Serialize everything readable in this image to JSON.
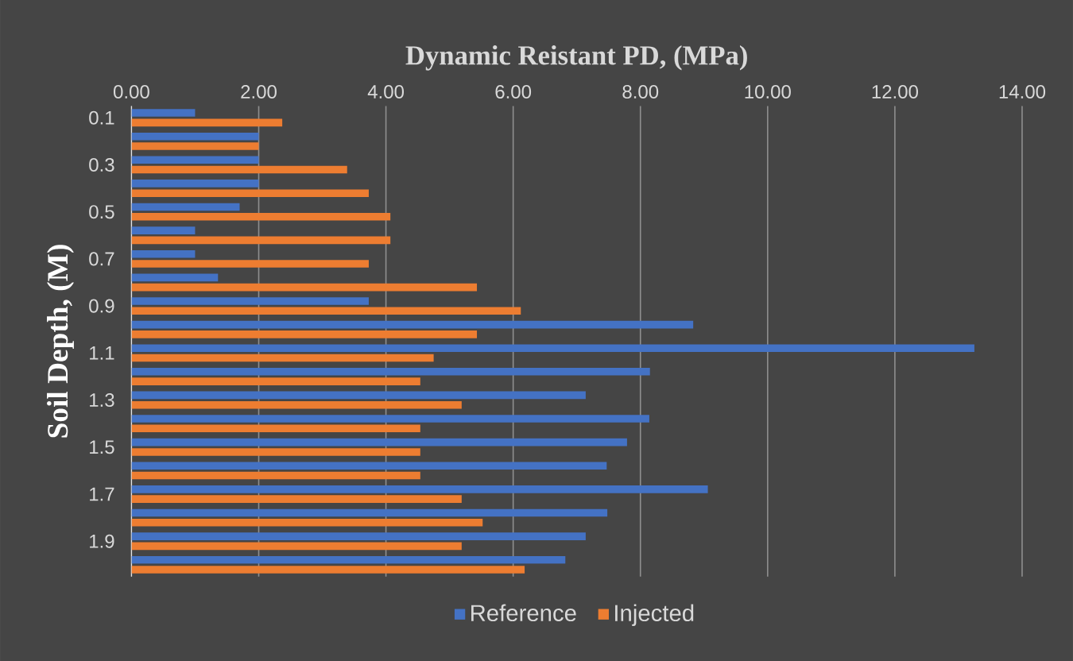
{
  "chart_data": {
    "type": "bar",
    "orientation": "horizontal",
    "xlabel": "Dynamic Reistant PD, (MPa)",
    "ylabel": "Soil Depth, (M)",
    "categories": [
      "0.1",
      null,
      "0.3",
      null,
      "0.5",
      null,
      "0.7",
      null,
      "0.9",
      null,
      "1.1",
      null,
      "1.3",
      null,
      "1.5",
      null,
      "1.7",
      null,
      "1.9",
      null
    ],
    "series": [
      {
        "name": "Reference",
        "color": "#4472c4",
        "values": [
          1.0,
          2.0,
          2.0,
          2.0,
          1.7,
          1.0,
          1.0,
          1.36,
          3.73,
          8.83,
          13.25,
          8.15,
          7.14,
          8.14,
          7.79,
          7.47,
          9.06,
          7.48,
          7.14,
          6.82
        ]
      },
      {
        "name": "Injected",
        "color": "#ed7d31",
        "values": [
          2.37,
          2.0,
          3.39,
          3.73,
          4.07,
          4.07,
          3.73,
          5.43,
          6.12,
          5.43,
          4.75,
          4.54,
          5.19,
          4.54,
          4.54,
          4.54,
          5.19,
          5.52,
          5.19,
          6.18
        ]
      }
    ],
    "xlim": [
      0,
      14
    ],
    "xticks": [
      {
        "value": 0,
        "label": "0.00"
      },
      {
        "value": 2,
        "label": "2.00"
      },
      {
        "value": 4,
        "label": "4.00"
      },
      {
        "value": 6,
        "label": "6.00"
      },
      {
        "value": 8,
        "label": "8.00"
      },
      {
        "value": 10,
        "label": "10.00"
      },
      {
        "value": 12,
        "label": "12.00"
      },
      {
        "value": 14,
        "label": "14.00"
      }
    ],
    "grid": "x",
    "legend": "bottom"
  }
}
